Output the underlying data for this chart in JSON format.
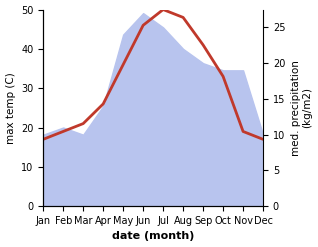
{
  "months": [
    "Jan",
    "Feb",
    "Mar",
    "Apr",
    "May",
    "Jun",
    "Jul",
    "Aug",
    "Sep",
    "Oct",
    "Nov",
    "Dec"
  ],
  "temperature": [
    17.0,
    19.0,
    21.0,
    26.0,
    36.0,
    46.0,
    50.0,
    48.0,
    41.0,
    33.0,
    19.0,
    17.0
  ],
  "precipitation": [
    10.0,
    11.0,
    10.0,
    14.0,
    24.0,
    27.0,
    25.0,
    22.0,
    20.0,
    19.0,
    19.0,
    10.0
  ],
  "temp_color": "#c0392b",
  "precip_color": "#b8c4ee",
  "left_ylim": [
    0,
    50
  ],
  "right_ylim": [
    0,
    27.5
  ],
  "left_yticks": [
    0,
    10,
    20,
    30,
    40,
    50
  ],
  "right_yticks": [
    0,
    5,
    10,
    15,
    20,
    25
  ],
  "ylabel_left": "max temp (C)",
  "ylabel_right": "med. precipitation\n(kg/m2)",
  "xlabel": "date (month)",
  "line_width": 2.0,
  "bg_color": "#ffffff"
}
